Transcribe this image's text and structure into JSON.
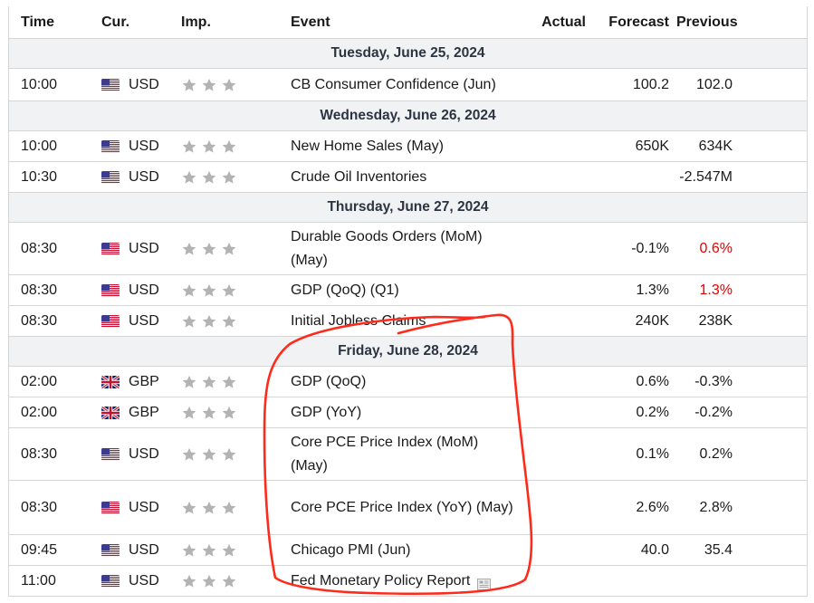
{
  "header": {
    "time": "Time",
    "currency": "Cur.",
    "importance": "Imp.",
    "event": "Event",
    "actual": "Actual",
    "forecast": "Forecast",
    "previous": "Previous"
  },
  "days": [
    {
      "label": "Tuesday, June 25, 2024",
      "events": [
        {
          "time": "10:00",
          "currency": "USD",
          "flag": "us-flag-icon",
          "event": "CB Consumer Confidence (Jun)",
          "actual": "",
          "forecast": "100.2",
          "previous": "102.0",
          "previous_red": false
        }
      ]
    },
    {
      "label": "Wednesday, June 26, 2024",
      "events": [
        {
          "time": "10:00",
          "currency": "USD",
          "flag": "us-flag-icon",
          "event": "New Home Sales (May)",
          "actual": "",
          "forecast": "650K",
          "previous": "634K",
          "previous_red": false
        },
        {
          "time": "10:30",
          "currency": "USD",
          "flag": "us-flag-icon",
          "event": "Crude Oil Inventories",
          "actual": "",
          "forecast": "",
          "previous": "-2.547M",
          "previous_red": false
        }
      ]
    },
    {
      "label": "Thursday, June 27, 2024",
      "events": [
        {
          "time": "08:30",
          "currency": "USD",
          "flag": "us-flag-icon",
          "event": "Durable Goods Orders (MoM) (May)",
          "actual": "",
          "forecast": "-0.1%",
          "previous": "0.6%",
          "previous_red": true
        },
        {
          "time": "08:30",
          "currency": "USD",
          "flag": "us-flag-icon",
          "event": "GDP (QoQ) (Q1)",
          "actual": "",
          "forecast": "1.3%",
          "previous": "1.3%",
          "previous_red": true
        },
        {
          "time": "08:30",
          "currency": "USD",
          "flag": "us-flag-icon",
          "event": "Initial Jobless Claims",
          "actual": "",
          "forecast": "240K",
          "previous": "238K",
          "previous_red": false
        }
      ]
    },
    {
      "label": "Friday, June 28, 2024",
      "events": [
        {
          "time": "02:00",
          "currency": "GBP",
          "flag": "uk-flag-icon",
          "event": "GDP (QoQ)",
          "actual": "",
          "forecast": "0.6%",
          "previous": "-0.3%",
          "previous_red": false
        },
        {
          "time": "02:00",
          "currency": "GBP",
          "flag": "uk-flag-icon",
          "event": "GDP (YoY)",
          "actual": "",
          "forecast": "0.2%",
          "previous": "-0.2%",
          "previous_red": false
        },
        {
          "time": "08:30",
          "currency": "USD",
          "flag": "us-flag-icon",
          "event": "Core PCE Price Index (MoM) (May)",
          "actual": "",
          "forecast": "0.1%",
          "previous": "0.2%",
          "previous_red": false
        },
        {
          "time": "08:30",
          "currency": "USD",
          "flag": "us-flag-icon",
          "event": "Core PCE Price Index (YoY) (May)",
          "actual": "",
          "forecast": "2.6%",
          "previous": "2.8%",
          "previous_red": false
        },
        {
          "time": "09:45",
          "currency": "USD",
          "flag": "us-flag-icon",
          "event": "Chicago PMI (Jun)",
          "actual": "",
          "forecast": "40.0",
          "previous": "35.4",
          "previous_red": false
        },
        {
          "time": "11:00",
          "currency": "USD",
          "flag": "us-flag-icon",
          "event": "Fed Monetary Policy Report",
          "actual": "",
          "forecast": "",
          "previous": "",
          "previous_red": false,
          "has_report_icon": true
        }
      ]
    }
  ],
  "importance_stars": 3,
  "colors": {
    "border": "#d6d6d6",
    "day_bg": "#f1f2f4",
    "star": "#b3b3b3",
    "negative_red": "#e60000",
    "annotation_red": "#ff2a1a"
  }
}
